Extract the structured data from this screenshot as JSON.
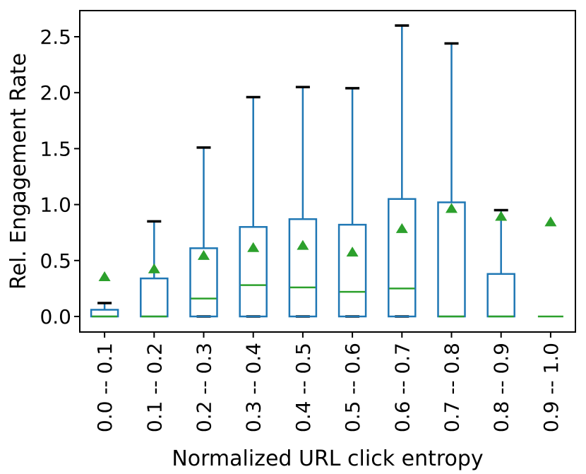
{
  "chart_data": {
    "type": "box",
    "title": "",
    "xlabel": "Normalized URL click entropy",
    "ylabel": "Rel. Engagement Rate",
    "categories": [
      "0.0 -- 0.1",
      "0.1 -- 0.2",
      "0.2 -- 0.3",
      "0.3 -- 0.4",
      "0.4 -- 0.5",
      "0.5 -- 0.6",
      "0.6 -- 0.7",
      "0.7 -- 0.8",
      "0.8 -- 0.9",
      "0.9 -- 1.0"
    ],
    "yticks": [
      0.0,
      0.5,
      1.0,
      1.5,
      2.0,
      2.5
    ],
    "ytick_labels": [
      "0.0",
      "0.5",
      "1.0",
      "1.5",
      "2.0",
      "2.5"
    ],
    "ylim": [
      -0.14,
      2.73
    ],
    "grid": false,
    "legend_position": "none",
    "boxes": [
      {
        "label": "0.0 -- 0.1",
        "whisker_low": 0.0,
        "q1": 0.0,
        "median": 0.0,
        "q3": 0.06,
        "whisker_high": 0.12,
        "mean": 0.36
      },
      {
        "label": "0.1 -- 0.2",
        "whisker_low": 0.0,
        "q1": 0.0,
        "median": 0.0,
        "q3": 0.34,
        "whisker_high": 0.85,
        "mean": 0.43
      },
      {
        "label": "0.2 -- 0.3",
        "whisker_low": 0.0,
        "q1": 0.0,
        "median": 0.16,
        "q3": 0.61,
        "whisker_high": 1.51,
        "mean": 0.55
      },
      {
        "label": "0.3 -- 0.4",
        "whisker_low": 0.0,
        "q1": 0.0,
        "median": 0.28,
        "q3": 0.8,
        "whisker_high": 1.96,
        "mean": 0.62
      },
      {
        "label": "0.4 -- 0.5",
        "whisker_low": 0.0,
        "q1": 0.0,
        "median": 0.26,
        "q3": 0.87,
        "whisker_high": 2.05,
        "mean": 0.64
      },
      {
        "label": "0.5 -- 0.6",
        "whisker_low": 0.0,
        "q1": 0.0,
        "median": 0.22,
        "q3": 0.82,
        "whisker_high": 2.04,
        "mean": 0.58
      },
      {
        "label": "0.6 -- 0.7",
        "whisker_low": 0.0,
        "q1": 0.0,
        "median": 0.25,
        "q3": 1.05,
        "whisker_high": 2.6,
        "mean": 0.79
      },
      {
        "label": "0.7 -- 0.8",
        "whisker_low": 0.0,
        "q1": 0.0,
        "median": 0.0,
        "q3": 1.02,
        "whisker_high": 2.44,
        "mean": 0.97
      },
      {
        "label": "0.8 -- 0.9",
        "whisker_low": 0.0,
        "q1": 0.0,
        "median": 0.0,
        "q3": 0.38,
        "whisker_high": 0.95,
        "mean": 0.9
      },
      {
        "label": "0.9 -- 1.0",
        "whisker_low": 0.0,
        "q1": 0.0,
        "median": 0.0,
        "q3": 0.0,
        "whisker_high": 0.0,
        "mean": 0.85
      }
    ],
    "colors": {
      "box": "#1f77b4",
      "whisker": "#1f77b4",
      "cap": "#000000",
      "median": "#2ca02c",
      "mean_marker": "#2ca02c",
      "axis": "#000000",
      "background": "#ffffff"
    },
    "mean_marker_shape": "triangle-up"
  }
}
